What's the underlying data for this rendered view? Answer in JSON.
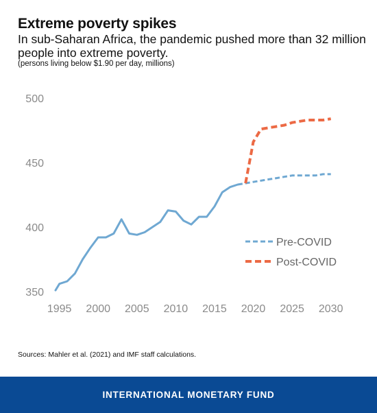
{
  "header": {
    "title": "Extreme poverty spikes",
    "subtitle": "In sub-Saharan Africa, the pandemic pushed more than 32 million people into extreme poverty.",
    "note": "(persons living below $1.90 per day, millions)"
  },
  "source": "Sources: Mahler et al. (2021) and IMF staff calculations.",
  "footer": {
    "label": "INTERNATIONAL MONETARY FUND",
    "color": "#0a4a94"
  },
  "chart_data": {
    "type": "line",
    "title": "",
    "xlabel": "",
    "ylabel": "",
    "xlim": [
      1994.5,
      2031
    ],
    "ylim": [
      350,
      500
    ],
    "xticks": [
      1995,
      2000,
      2005,
      2010,
      2015,
      2020,
      2025,
      2030
    ],
    "yticks": [
      350,
      400,
      450,
      500
    ],
    "grid": false,
    "legend_position": "right",
    "series": [
      {
        "name": "Pre-COVID",
        "color": "#6fa8d2",
        "style": "solid",
        "x": [
          1994.5,
          1995,
          1996,
          1997,
          1998,
          1999,
          2000,
          2001,
          2002,
          2003,
          2004,
          2005,
          2006,
          2007,
          2008,
          2009,
          2010,
          2011,
          2012,
          2013,
          2014,
          2015,
          2016,
          2017,
          2018
        ],
        "values": [
          351,
          356,
          358,
          364,
          375,
          384,
          392,
          392,
          395,
          406,
          395,
          394,
          396,
          400,
          404,
          413,
          412,
          405,
          402,
          408,
          408,
          416,
          427,
          431,
          433
        ]
      },
      {
        "name": "Pre-COVID",
        "color": "#6fa8d2",
        "style": "dashed",
        "x": [
          2018,
          2019,
          2020,
          2021,
          2022,
          2023,
          2024,
          2025,
          2026,
          2027,
          2028,
          2029,
          2030
        ],
        "values": [
          433,
          434,
          435,
          436,
          437,
          438,
          439,
          440,
          440,
          440,
          440,
          441,
          441
        ]
      },
      {
        "name": "Post-COVID",
        "color": "#ec6a45",
        "style": "dashed",
        "x": [
          2019,
          2020,
          2021,
          2022,
          2023,
          2024,
          2025,
          2026,
          2027,
          2028,
          2029,
          2030
        ],
        "values": [
          434,
          466,
          476,
          477,
          478,
          479,
          481,
          482,
          483,
          483,
          483,
          484
        ]
      }
    ],
    "legend": [
      {
        "label": "Pre-COVID",
        "color": "#6fa8d2"
      },
      {
        "label": "Post-COVID",
        "color": "#ec6a45"
      }
    ]
  }
}
